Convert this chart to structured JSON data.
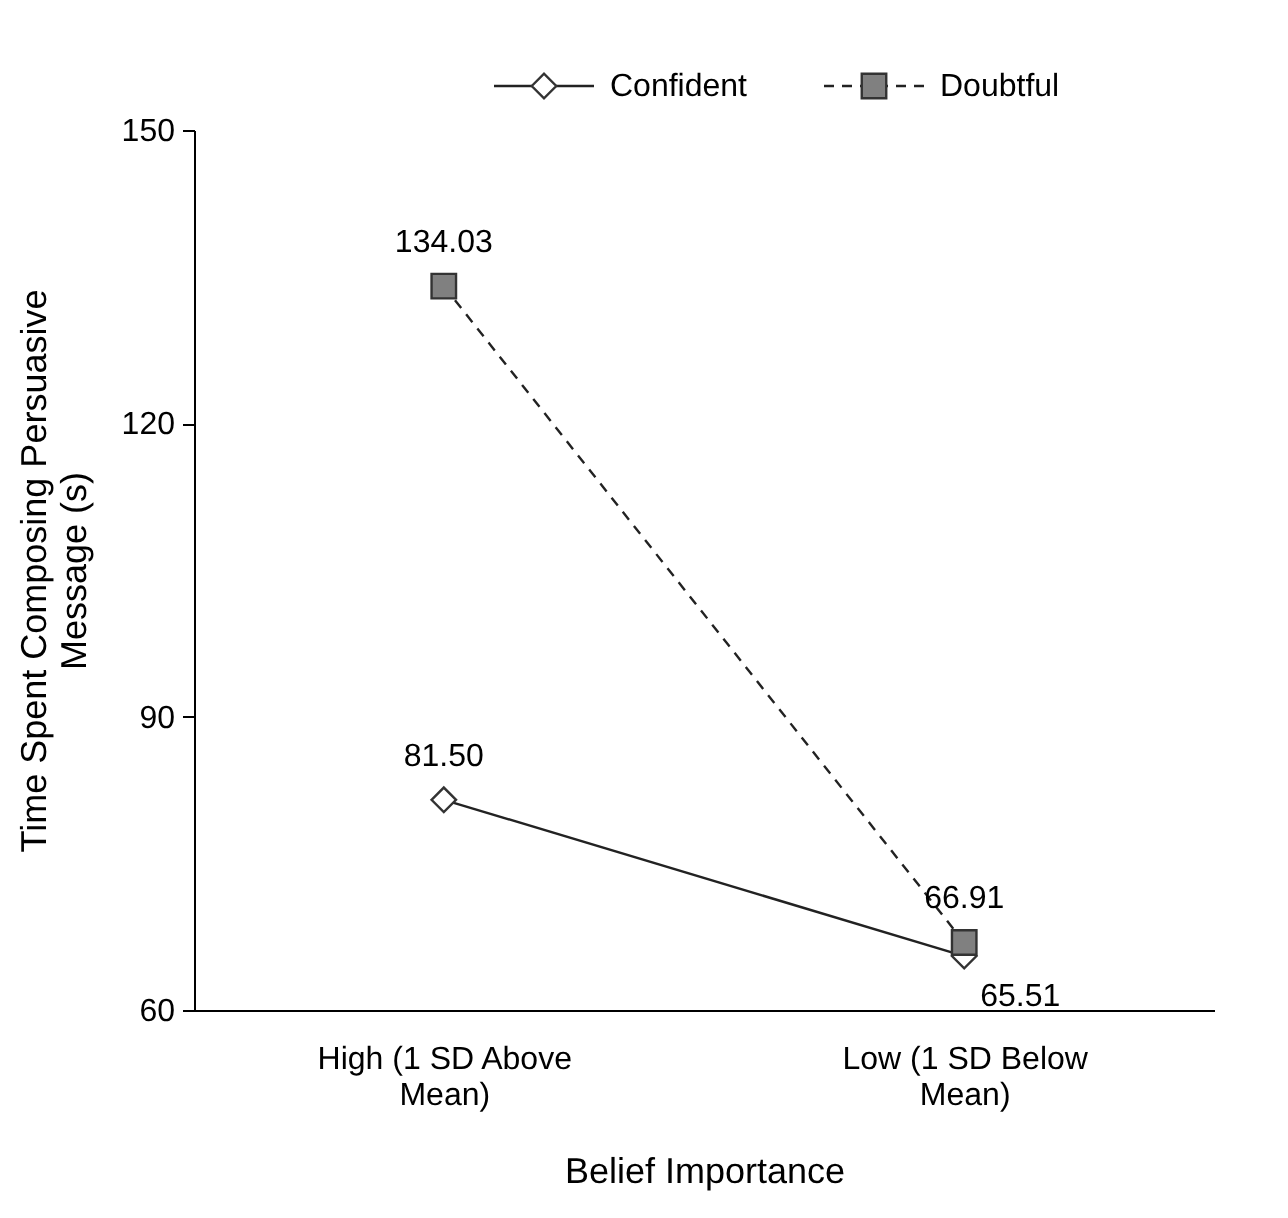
{
  "chart_data": {
    "type": "line",
    "xlabel": "Belief Importance",
    "ylabel": "Time Spent Composing Persuasive Message (s)",
    "categories": [
      "High (1 SD Above Mean)",
      "Low (1 SD Below Mean)"
    ],
    "series": [
      {
        "name": "Confident",
        "color": "#ffffff",
        "values": [
          81.5,
          65.51
        ],
        "marker": "diamond",
        "line_style": "solid"
      },
      {
        "name": "Doubtful",
        "color": "#808080",
        "values": [
          134.03,
          66.91
        ],
        "marker": "square",
        "line_style": "dashed"
      }
    ],
    "ylim": [
      60,
      150
    ],
    "yticks": [
      60,
      90,
      120,
      150
    ],
    "grid": false,
    "legend": "top",
    "value_labels": [
      [
        "81.50",
        "65.51"
      ],
      [
        "134.03",
        "66.91"
      ]
    ]
  }
}
